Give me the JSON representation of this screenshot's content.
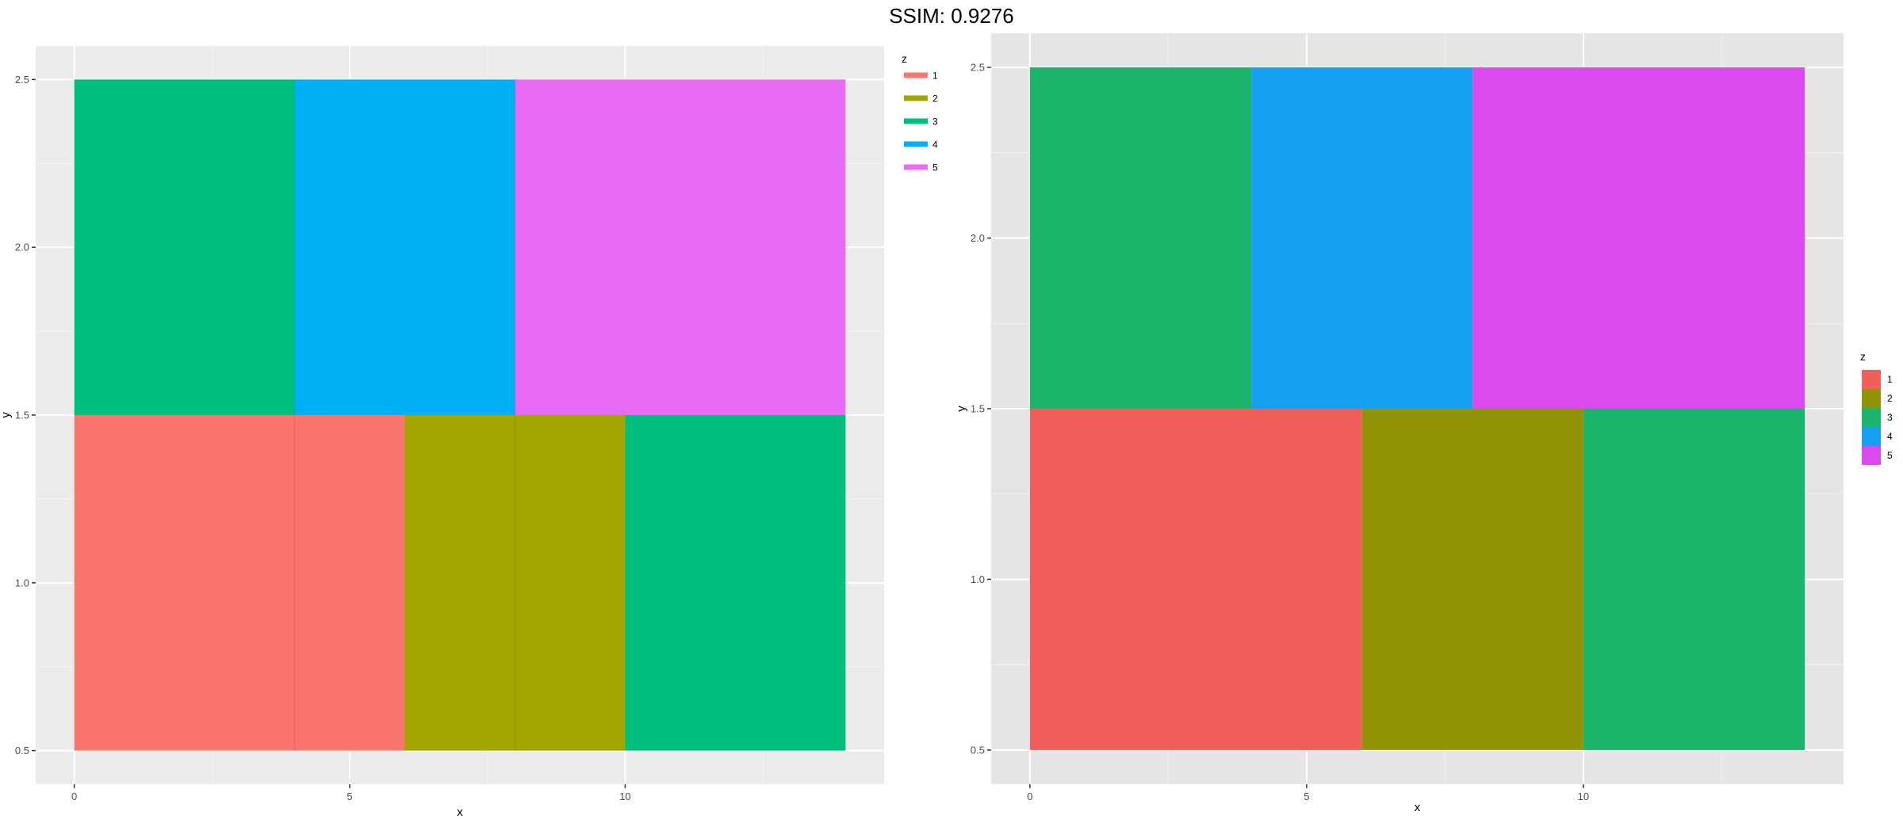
{
  "header": {
    "title": "SSIM: 0.9276"
  },
  "chart_data": [
    {
      "type": "heatmap",
      "variant": "tiles",
      "xlabel": "x",
      "ylabel": "y",
      "xlim": [
        -0.7,
        14.7
      ],
      "ylim": [
        0.4,
        2.6
      ],
      "x_ticks": [
        0,
        5,
        10
      ],
      "x_tick_labels": [
        "0",
        "5",
        "10"
      ],
      "y_ticks": [
        0.5,
        1.0,
        1.5,
        2.0,
        2.5
      ],
      "y_tick_labels": [
        "0.5",
        "1.0",
        "1.5",
        "2.0",
        "2.5"
      ],
      "grid": true,
      "legend": {
        "title": "z",
        "placement": "right-top",
        "key_style": "line",
        "items": [
          {
            "label": "1",
            "color": "#F8766D"
          },
          {
            "label": "2",
            "color": "#A3A500"
          },
          {
            "label": "3",
            "color": "#00BF7D"
          },
          {
            "label": "4",
            "color": "#00B0F6"
          },
          {
            "label": "5",
            "color": "#E76BF3"
          }
        ]
      },
      "tiles": [
        {
          "xmin": 0,
          "xmax": 6,
          "ymin": 0.5,
          "ymax": 1.5,
          "z": "1"
        },
        {
          "xmin": 6,
          "xmax": 10,
          "ymin": 0.5,
          "ymax": 1.5,
          "z": "2"
        },
        {
          "xmin": 10,
          "xmax": 14,
          "ymin": 0.5,
          "ymax": 1.5,
          "z": "3"
        },
        {
          "xmin": 0,
          "xmax": 4,
          "ymin": 1.5,
          "ymax": 2.5,
          "z": "3"
        },
        {
          "xmin": 4,
          "xmax": 8,
          "ymin": 1.5,
          "ymax": 2.5,
          "z": "4"
        },
        {
          "xmin": 8,
          "xmax": 14,
          "ymin": 1.5,
          "ymax": 2.5,
          "z": "5"
        }
      ],
      "inner_divisions_x": [
        4,
        8
      ],
      "palette": {
        "panel_bg": "#EBEBEB",
        "grid_major": "#FFFFFF",
        "grid_minor": "#F5F5F5",
        "divider": "#BDBDBD"
      }
    },
    {
      "type": "heatmap",
      "variant": "tiles",
      "xlabel": "x",
      "ylabel": "y",
      "xlim": [
        -0.7,
        14.7
      ],
      "ylim": [
        0.4,
        2.6
      ],
      "x_ticks": [
        0,
        5,
        10
      ],
      "x_tick_labels": [
        "0",
        "5",
        "10"
      ],
      "y_ticks": [
        0.5,
        1.0,
        1.5,
        2.0,
        2.5
      ],
      "y_tick_labels": [
        "0.5",
        "1.0",
        "1.5",
        "2.0",
        "2.5"
      ],
      "grid": true,
      "legend": {
        "title": "z",
        "placement": "right-center",
        "key_style": "square",
        "items": [
          {
            "label": "1",
            "color": "#F25F5A"
          },
          {
            "label": "2",
            "color": "#919406"
          },
          {
            "label": "3",
            "color": "#1BB46A"
          },
          {
            "label": "4",
            "color": "#15A0F2"
          },
          {
            "label": "5",
            "color": "#DC4AEF"
          }
        ]
      },
      "tiles": [
        {
          "xmin": 0,
          "xmax": 6,
          "ymin": 0.5,
          "ymax": 1.5,
          "z": "1"
        },
        {
          "xmin": 6,
          "xmax": 10,
          "ymin": 0.5,
          "ymax": 1.5,
          "z": "2"
        },
        {
          "xmin": 10,
          "xmax": 14,
          "ymin": 0.5,
          "ymax": 1.5,
          "z": "3"
        },
        {
          "xmin": 0,
          "xmax": 4,
          "ymin": 1.5,
          "ymax": 2.5,
          "z": "3"
        },
        {
          "xmin": 4,
          "xmax": 8,
          "ymin": 1.5,
          "ymax": 2.5,
          "z": "4"
        },
        {
          "xmin": 8,
          "xmax": 14,
          "ymin": 1.5,
          "ymax": 2.5,
          "z": "5"
        }
      ],
      "inner_divisions_x": [],
      "palette": {
        "panel_bg": "#E5E5E5",
        "grid_major": "#FFFFFF",
        "grid_minor": "#F2F2F2",
        "divider": "#BDBDBD"
      }
    }
  ]
}
